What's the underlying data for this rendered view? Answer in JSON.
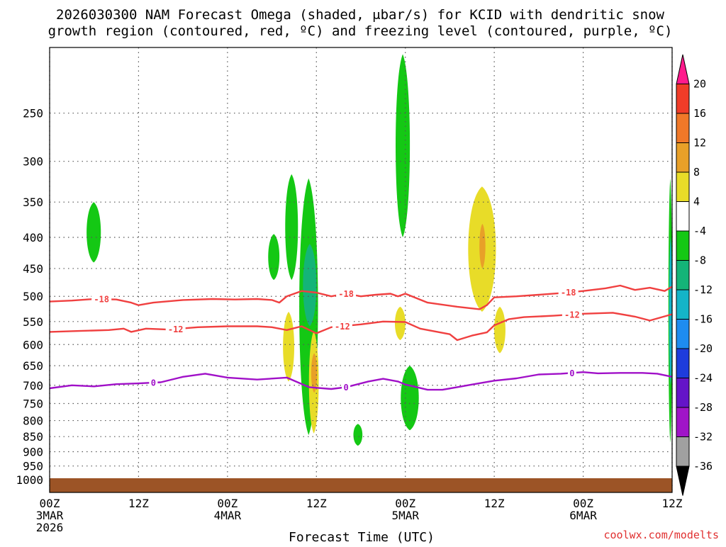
{
  "chart_data": {
    "type": "heatmap",
    "title_line1": "2026030300 NAM Forecast Omega (shaded, μbar/s) for KCID with dendritic snow",
    "title_line2": "growth region (contoured, red, ºC) and freezing level (contoured, purple, ºC)",
    "xlabel": "Forecast Time (UTC)",
    "credit": "coolwx.com/modelts",
    "x_range_hours": [
      0,
      84
    ],
    "y_range_hpa": [
      1050,
      195
    ],
    "y_ticks": [
      250,
      300,
      350,
      400,
      450,
      500,
      550,
      600,
      650,
      700,
      750,
      800,
      850,
      900,
      950,
      1000
    ],
    "x_ticks": [
      {
        "hour": 0,
        "line1": "00Z",
        "line2": "3MAR",
        "line3": "2026"
      },
      {
        "hour": 12,
        "line1": "12Z",
        "line2": "",
        "line3": ""
      },
      {
        "hour": 24,
        "line1": "00Z",
        "line2": "4MAR",
        "line3": ""
      },
      {
        "hour": 36,
        "line1": "12Z",
        "line2": "",
        "line3": ""
      },
      {
        "hour": 48,
        "line1": "00Z",
        "line2": "5MAR",
        "line3": ""
      },
      {
        "hour": 60,
        "line1": "12Z",
        "line2": "",
        "line3": ""
      },
      {
        "hour": 72,
        "line1": "00Z",
        "line2": "6MAR",
        "line3": ""
      },
      {
        "hour": 84,
        "line1": "12Z",
        "line2": "",
        "line3": ""
      }
    ],
    "grid": true,
    "colorbar": {
      "labels": [
        "20",
        "16",
        "12",
        "8",
        "4",
        "-4",
        "-8",
        "-12",
        "-16",
        "-20",
        "-24",
        "-28",
        "-32",
        "-36"
      ],
      "colors": [
        "#ff1a8c",
        "#f03c28",
        "#f07828",
        "#e8a028",
        "#e8dc28",
        "#ffffff",
        "#14c814",
        "#14b478",
        "#14b4c8",
        "#1e8cf0",
        "#1e3cdc",
        "#6414c8",
        "#a014c8",
        "#a0a0a0",
        "#000000"
      ]
    },
    "contours": {
      "snow_minus18": {
        "label": "-18",
        "color": "#f04040",
        "points": [
          [
            0,
            510
          ],
          [
            3,
            508
          ],
          [
            6,
            505
          ],
          [
            9,
            506
          ],
          [
            11,
            512
          ],
          [
            12,
            517
          ],
          [
            14,
            512
          ],
          [
            18,
            507
          ],
          [
            22,
            505
          ],
          [
            25,
            506
          ],
          [
            28,
            505
          ],
          [
            30,
            507
          ],
          [
            31,
            512
          ],
          [
            32,
            500
          ],
          [
            34,
            490
          ],
          [
            36,
            493
          ],
          [
            38,
            500
          ],
          [
            40,
            495
          ],
          [
            42,
            500
          ],
          [
            44,
            497
          ],
          [
            46,
            495
          ],
          [
            47,
            500
          ],
          [
            48,
            495
          ],
          [
            51,
            512
          ],
          [
            55,
            520
          ],
          [
            58,
            525
          ],
          [
            59,
            517
          ],
          [
            60,
            502
          ],
          [
            63,
            500
          ],
          [
            66,
            497
          ],
          [
            69,
            494
          ],
          [
            72,
            490
          ],
          [
            75,
            485
          ],
          [
            77,
            480
          ],
          [
            79,
            488
          ],
          [
            81,
            484
          ],
          [
            83,
            490
          ],
          [
            84,
            482
          ]
        ],
        "label_hours": [
          7,
          40,
          70
        ]
      },
      "snow_minus12": {
        "label": "-12",
        "color": "#f04040",
        "points": [
          [
            0,
            572
          ],
          [
            4,
            570
          ],
          [
            8,
            568
          ],
          [
            10,
            565
          ],
          [
            11,
            572
          ],
          [
            13,
            565
          ],
          [
            16,
            567
          ],
          [
            20,
            562
          ],
          [
            24,
            560
          ],
          [
            28,
            560
          ],
          [
            30,
            562
          ],
          [
            32,
            568
          ],
          [
            34,
            560
          ],
          [
            36,
            575
          ],
          [
            38,
            562
          ],
          [
            42,
            556
          ],
          [
            45,
            550
          ],
          [
            48,
            551
          ],
          [
            50,
            565
          ],
          [
            54,
            577
          ],
          [
            55,
            590
          ],
          [
            57,
            580
          ],
          [
            59,
            573
          ],
          [
            60,
            558
          ],
          [
            62,
            545
          ],
          [
            64,
            541
          ],
          [
            68,
            538
          ],
          [
            72,
            534
          ],
          [
            76,
            532
          ],
          [
            79,
            540
          ],
          [
            81,
            548
          ],
          [
            84,
            535
          ]
        ],
        "label_hours": [
          17,
          39.5,
          70.5
        ]
      },
      "freezing_0": {
        "label": "0",
        "color": "#a010c8",
        "points": [
          [
            0,
            708
          ],
          [
            3,
            700
          ],
          [
            6,
            703
          ],
          [
            9,
            697
          ],
          [
            12,
            695
          ],
          [
            15,
            692
          ],
          [
            18,
            678
          ],
          [
            21,
            670
          ],
          [
            24,
            680
          ],
          [
            28,
            685
          ],
          [
            32,
            680
          ],
          [
            35,
            705
          ],
          [
            38,
            710
          ],
          [
            40,
            705
          ],
          [
            43,
            690
          ],
          [
            45,
            683
          ],
          [
            47,
            690
          ],
          [
            48,
            698
          ],
          [
            51,
            712
          ],
          [
            53,
            712
          ],
          [
            55,
            705
          ],
          [
            57,
            698
          ],
          [
            60,
            688
          ],
          [
            63,
            682
          ],
          [
            66,
            672
          ],
          [
            69,
            670
          ],
          [
            72,
            666
          ],
          [
            74,
            669
          ],
          [
            77,
            668
          ],
          [
            80,
            668
          ],
          [
            82,
            670
          ],
          [
            84,
            678
          ]
        ],
        "label_hours": [
          14,
          40,
          70.5
        ]
      }
    },
    "omega_regions": [
      {
        "value": -6,
        "hours": [
          5,
          6.9
        ],
        "p_top": 350,
        "p_bot": 440
      },
      {
        "value": -6,
        "hours": [
          29.5,
          31
        ],
        "p_top": 395,
        "p_bot": 470
      },
      {
        "value": -6,
        "hours": [
          31.8,
          33.5
        ],
        "p_top": 315,
        "p_bot": 470
      },
      {
        "value": -6,
        "hours": [
          33.7,
          36.2
        ],
        "p_top": 320,
        "p_bot": 845
      },
      {
        "value": -10,
        "hours": [
          34.2,
          36
        ],
        "p_top": 410,
        "p_bot": 560
      },
      {
        "value": 6,
        "hours": [
          31.5,
          33
        ],
        "p_top": 530,
        "p_bot": 690
      },
      {
        "value": 6,
        "hours": [
          35,
          36.3
        ],
        "p_top": 570,
        "p_bot": 840
      },
      {
        "value": 10,
        "hours": [
          35.3,
          36.1
        ],
        "p_top": 620,
        "p_bot": 720
      },
      {
        "value": -6,
        "hours": [
          46.7,
          48.6
        ],
        "p_top": 200,
        "p_bot": 400
      },
      {
        "value": 6,
        "hours": [
          46.6,
          48
        ],
        "p_top": 520,
        "p_bot": 590
      },
      {
        "value": -6,
        "hours": [
          47.4,
          49.8
        ],
        "p_top": 650,
        "p_bot": 830
      },
      {
        "value": -6,
        "hours": [
          41,
          42.2
        ],
        "p_top": 810,
        "p_bot": 880
      },
      {
        "value": 6,
        "hours": [
          56.5,
          60.2
        ],
        "p_top": 330,
        "p_bot": 530
      },
      {
        "value": 6,
        "hours": [
          60,
          61.5
        ],
        "p_top": 520,
        "p_bot": 620
      },
      {
        "value": 10,
        "hours": [
          58,
          58.8
        ],
        "p_top": 380,
        "p_bot": 450
      },
      {
        "value": -6,
        "hours": [
          83.5,
          84
        ],
        "p_top": 320,
        "p_bot": 870
      },
      {
        "value": -14,
        "hours": [
          83.6,
          84
        ],
        "p_top": 400,
        "p_bot": 700
      }
    ],
    "terrain": {
      "color": "#9c5426",
      "p_top": 995,
      "p_bot": 1050
    }
  }
}
